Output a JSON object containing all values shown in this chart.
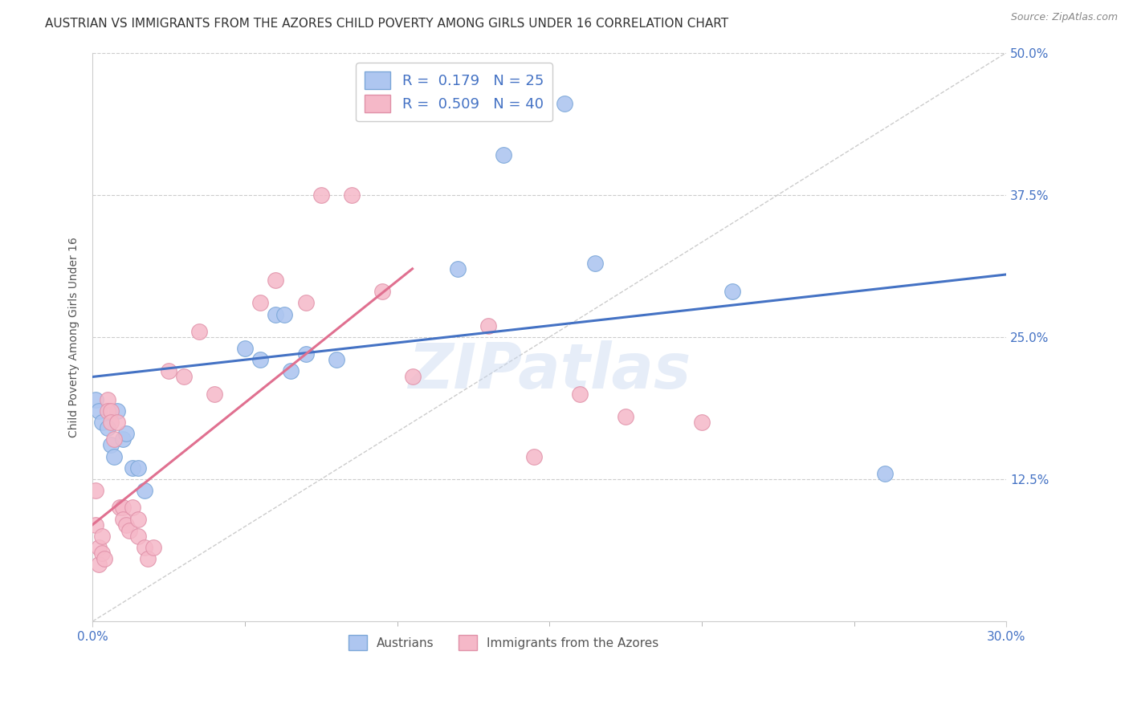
{
  "title": "AUSTRIAN VS IMMIGRANTS FROM THE AZORES CHILD POVERTY AMONG GIRLS UNDER 16 CORRELATION CHART",
  "source": "Source: ZipAtlas.com",
  "ylabel_label": "Child Poverty Among Girls Under 16",
  "watermark": "ZIPatlas",
  "austrians_line_color": "#4472c4",
  "azores_line_color": "#e07090",
  "dot_color_austrians": "#aec6f0",
  "dot_color_azores": "#f5b8c8",
  "dot_edge_color_austrians": "#7ba7d8",
  "dot_edge_color_azores": "#e090a8",
  "background_color": "#ffffff",
  "grid_color": "#cccccc",
  "title_fontsize": 11,
  "axis_label_fontsize": 10,
  "tick_fontsize": 11,
  "source_fontsize": 9,
  "xlim": [
    0.0,
    0.3
  ],
  "ylim": [
    0.0,
    0.5
  ],
  "austrians_x": [
    0.001,
    0.002,
    0.003,
    0.005,
    0.006,
    0.007,
    0.008,
    0.01,
    0.011,
    0.013,
    0.015,
    0.017,
    0.05,
    0.055,
    0.06,
    0.063,
    0.065,
    0.07,
    0.08,
    0.12,
    0.135,
    0.155,
    0.165,
    0.21,
    0.26
  ],
  "austrians_y": [
    0.195,
    0.185,
    0.175,
    0.17,
    0.155,
    0.145,
    0.185,
    0.16,
    0.165,
    0.135,
    0.135,
    0.115,
    0.24,
    0.23,
    0.27,
    0.27,
    0.22,
    0.235,
    0.23,
    0.31,
    0.41,
    0.455,
    0.315,
    0.29,
    0.13
  ],
  "azores_x": [
    0.001,
    0.001,
    0.002,
    0.002,
    0.003,
    0.003,
    0.004,
    0.005,
    0.005,
    0.006,
    0.006,
    0.007,
    0.008,
    0.009,
    0.01,
    0.01,
    0.011,
    0.012,
    0.013,
    0.015,
    0.015,
    0.017,
    0.018,
    0.02,
    0.025,
    0.03,
    0.035,
    0.04,
    0.055,
    0.06,
    0.07,
    0.075,
    0.085,
    0.095,
    0.105,
    0.13,
    0.145,
    0.16,
    0.175,
    0.2
  ],
  "azores_y": [
    0.115,
    0.085,
    0.05,
    0.065,
    0.075,
    0.06,
    0.055,
    0.195,
    0.185,
    0.185,
    0.175,
    0.16,
    0.175,
    0.1,
    0.1,
    0.09,
    0.085,
    0.08,
    0.1,
    0.09,
    0.075,
    0.065,
    0.055,
    0.065,
    0.22,
    0.215,
    0.255,
    0.2,
    0.28,
    0.3,
    0.28,
    0.375,
    0.375,
    0.29,
    0.215,
    0.26,
    0.145,
    0.2,
    0.18,
    0.175
  ],
  "austrians_line_x": [
    0.0,
    0.3
  ],
  "austrians_line_y": [
    0.215,
    0.305
  ],
  "azores_line_x": [
    0.0,
    0.105
  ],
  "azores_line_y": [
    0.085,
    0.31
  ],
  "r_austrians": "0.179",
  "n_austrians": "25",
  "r_azores": "0.509",
  "n_azores": "40"
}
